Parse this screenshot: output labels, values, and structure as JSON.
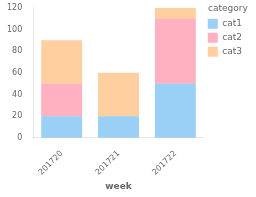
{
  "chart_data": {
    "type": "bar",
    "stacked": true,
    "categories": [
      "201720",
      "201721",
      "201722"
    ],
    "series": [
      {
        "name": "cat1",
        "values": [
          20,
          20,
          50
        ]
      },
      {
        "name": "cat2",
        "values": [
          30,
          0,
          60
        ]
      },
      {
        "name": "cat3",
        "values": [
          40,
          40,
          10
        ]
      }
    ],
    "xlabel": "week",
    "legend_title": "category",
    "legend": "upper right",
    "ylim": [
      0,
      120
    ],
    "yticks": [
      0,
      20,
      40,
      60,
      80,
      100,
      120
    ],
    "grid": false
  }
}
